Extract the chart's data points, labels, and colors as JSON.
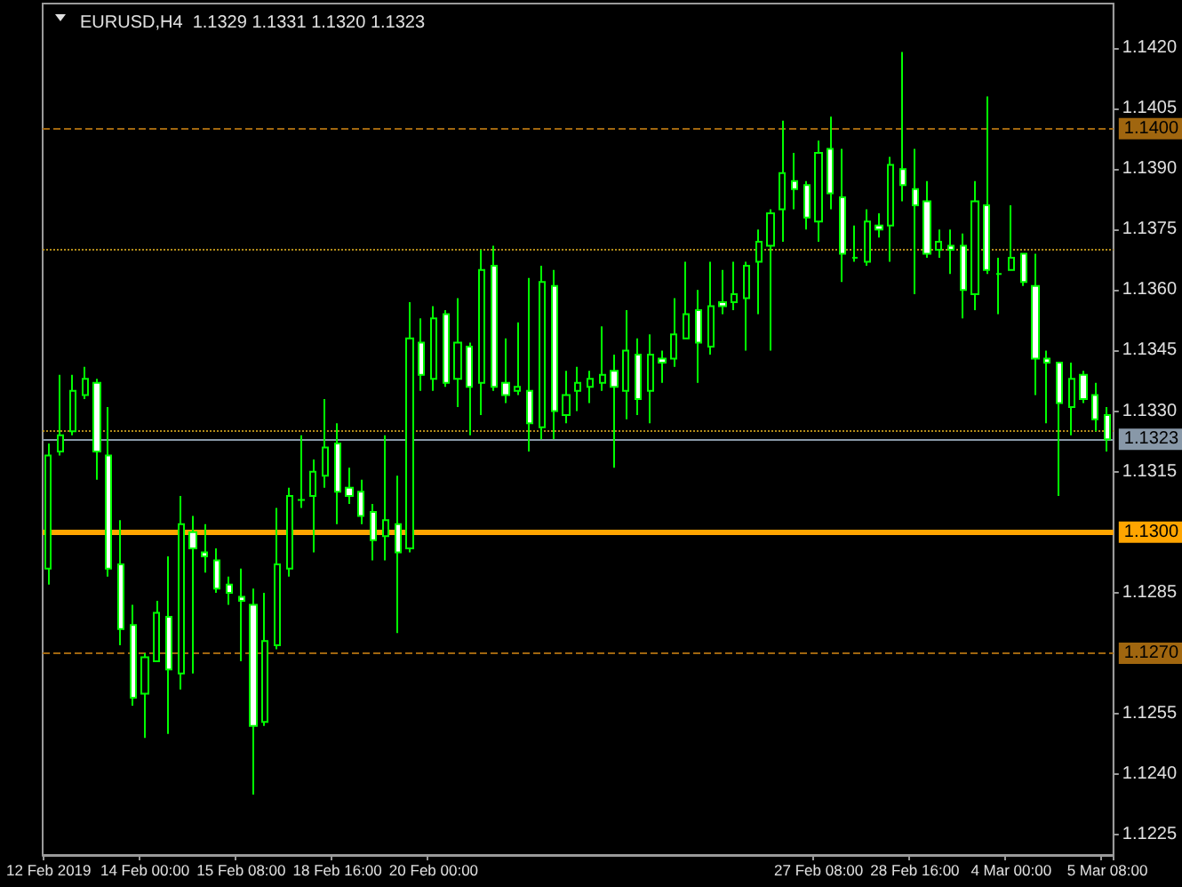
{
  "chart_data": {
    "type": "candlestick",
    "title": "EURUSD,H4  1.1329 1.1331 1.1320 1.1323",
    "categories": [
      "12 Feb 2019",
      null,
      null,
      null,
      null,
      null,
      null,
      null,
      "14 Feb 00:00",
      null,
      null,
      null,
      null,
      null,
      null,
      null,
      "15 Feb 08:00",
      null,
      null,
      null,
      null,
      null,
      null,
      null,
      "18 Feb 16:00",
      null,
      null,
      null,
      null,
      null,
      null,
      null,
      "20 Feb 00:00",
      null,
      null,
      null,
      null,
      null,
      null,
      null,
      null,
      null,
      null,
      null,
      null,
      null,
      null,
      null,
      null,
      null,
      null,
      null,
      null,
      null,
      null,
      null,
      null,
      null,
      null,
      null,
      null,
      null,
      null,
      null,
      "27 Feb 08:00",
      null,
      null,
      null,
      null,
      null,
      null,
      null,
      "28 Feb 16:00",
      null,
      null,
      null,
      null,
      null,
      null,
      null,
      "4 Mar 00:00",
      null,
      null,
      null,
      null,
      null,
      null,
      null,
      "5 Mar 08:00"
    ],
    "color": "#00ff00",
    "colors": [
      "#000000",
      "#000000",
      "#000000",
      "#000000",
      "#ffffff",
      "#ffffff",
      "#ffffff",
      "#ffffff",
      "#000000",
      "#000000",
      "#ffffff",
      "#000000",
      "#ffffff",
      "#ffffff",
      "#ffffff",
      "#ffffff",
      "#ffffff",
      "#ffffff",
      "#000000",
      "#000000",
      "#000000",
      "#00ff00",
      "#000000",
      "#000000",
      "#ffffff",
      "#ffffff",
      "#ffffff",
      "#ffffff",
      "#000000",
      "#ffffff",
      "#000000",
      "#ffffff",
      "#000000",
      "#ffffff",
      "#000000",
      "#ffffff",
      "#000000",
      "#ffffff",
      "#ffffff",
      "#000000",
      "#ffffff",
      "#000000",
      "#ffffff",
      "#000000",
      "#000000",
      "#000000",
      "#000000",
      "#ffffff",
      "#000000",
      "#ffffff",
      "#000000",
      "#ffffff",
      "#000000",
      "#000000",
      "#ffffff",
      "#000000",
      "#ffffff",
      "#000000",
      "#000000",
      "#000000",
      "#000000",
      "#000000",
      "#ffffff",
      "#ffffff",
      "#000000",
      "#ffffff",
      "#ffffff",
      "#00ff00",
      "#000000",
      "#ffffff",
      "#000000",
      "#ffffff",
      "#ffffff",
      "#ffffff",
      "#000000",
      "#ffffff",
      "#ffffff",
      "#000000",
      "#ffffff",
      "#00ff00",
      "#000000",
      "#ffffff",
      "#ffffff",
      "#ffffff",
      "#ffffff",
      "#000000",
      "#ffffff",
      "#ffffff",
      "#ffffff"
    ],
    "ohlc": [
      [
        1.1291,
        1.1322,
        1.1287,
        1.1319
      ],
      [
        1.132,
        1.1339,
        1.1319,
        1.1324
      ],
      [
        1.1325,
        1.1339,
        1.1324,
        1.1335
      ],
      [
        1.1334,
        1.1341,
        1.1333,
        1.1338
      ],
      [
        1.1337,
        1.1338,
        1.1313,
        1.132
      ],
      [
        1.1319,
        1.1331,
        1.1289,
        1.1291
      ],
      [
        1.1292,
        1.1303,
        1.1272,
        1.1276
      ],
      [
        1.1277,
        1.1282,
        1.1257,
        1.1259
      ],
      [
        1.126,
        1.127,
        1.1249,
        1.1269
      ],
      [
        1.1268,
        1.1283,
        1.1268,
        1.128
      ],
      [
        1.1279,
        1.1294,
        1.125,
        1.1266
      ],
      [
        1.1265,
        1.1309,
        1.1261,
        1.1302
      ],
      [
        1.13,
        1.1304,
        1.1265,
        1.1296
      ],
      [
        1.1295,
        1.1302,
        1.129,
        1.1294
      ],
      [
        1.1293,
        1.1296,
        1.1285,
        1.1286
      ],
      [
        1.1287,
        1.1289,
        1.1282,
        1.1285
      ],
      [
        1.1284,
        1.1291,
        1.1268,
        1.1283
      ],
      [
        1.1282,
        1.1286,
        1.1235,
        1.1252
      ],
      [
        1.1253,
        1.1285,
        1.1252,
        1.1273
      ],
      [
        1.1272,
        1.1306,
        1.1271,
        1.1292
      ],
      [
        1.1291,
        1.1311,
        1.1289,
        1.1309
      ],
      [
        1.1308,
        1.1324,
        1.1306,
        1.1308
      ],
      [
        1.1309,
        1.1318,
        1.1295,
        1.1315
      ],
      [
        1.1314,
        1.1333,
        1.1311,
        1.1321
      ],
      [
        1.1322,
        1.1327,
        1.1302,
        1.131
      ],
      [
        1.1311,
        1.1316,
        1.1307,
        1.1309
      ],
      [
        1.131,
        1.1313,
        1.1302,
        1.1304
      ],
      [
        1.1305,
        1.1307,
        1.1293,
        1.1298
      ],
      [
        1.1299,
        1.1324,
        1.1293,
        1.1303
      ],
      [
        1.1302,
        1.1314,
        1.1275,
        1.1295
      ],
      [
        1.1296,
        1.1357,
        1.1295,
        1.1348
      ],
      [
        1.1347,
        1.1353,
        1.1335,
        1.1339
      ],
      [
        1.1338,
        1.1356,
        1.1335,
        1.1353
      ],
      [
        1.1354,
        1.1355,
        1.1336,
        1.1337
      ],
      [
        1.1338,
        1.1358,
        1.1331,
        1.1347
      ],
      [
        1.1346,
        1.1347,
        1.1324,
        1.1336
      ],
      [
        1.1337,
        1.137,
        1.1329,
        1.1365
      ],
      [
        1.1366,
        1.1371,
        1.1335,
        1.1336
      ],
      [
        1.1337,
        1.1348,
        1.1332,
        1.1334
      ],
      [
        1.1335,
        1.1352,
        1.1334,
        1.1336
      ],
      [
        1.1335,
        1.1363,
        1.132,
        1.1327
      ],
      [
        1.1326,
        1.1366,
        1.1323,
        1.1362
      ],
      [
        1.1361,
        1.1365,
        1.1323,
        1.133
      ],
      [
        1.1329,
        1.134,
        1.1327,
        1.1334
      ],
      [
        1.1335,
        1.1341,
        1.133,
        1.1337
      ],
      [
        1.1336,
        1.134,
        1.1332,
        1.1338
      ],
      [
        1.1337,
        1.1351,
        1.1335,
        1.1339
      ],
      [
        1.134,
        1.1344,
        1.1316,
        1.1336
      ],
      [
        1.1335,
        1.1355,
        1.1328,
        1.1345
      ],
      [
        1.1344,
        1.1348,
        1.1329,
        1.1333
      ],
      [
        1.1335,
        1.1349,
        1.1327,
        1.1344
      ],
      [
        1.1343,
        1.1345,
        1.1337,
        1.1342
      ],
      [
        1.1343,
        1.1358,
        1.1341,
        1.1349
      ],
      [
        1.1348,
        1.1367,
        1.1348,
        1.1354
      ],
      [
        1.1355,
        1.136,
        1.1337,
        1.1347
      ],
      [
        1.1346,
        1.1367,
        1.1344,
        1.1356
      ],
      [
        1.1357,
        1.1365,
        1.1354,
        1.1356
      ],
      [
        1.1357,
        1.1367,
        1.1355,
        1.1359
      ],
      [
        1.1358,
        1.1367,
        1.1345,
        1.1366
      ],
      [
        1.1367,
        1.1375,
        1.1354,
        1.1372
      ],
      [
        1.1371,
        1.138,
        1.1345,
        1.1379
      ],
      [
        1.138,
        1.1402,
        1.1372,
        1.1389
      ],
      [
        1.1387,
        1.1394,
        1.138,
        1.1385
      ],
      [
        1.1386,
        1.1387,
        1.1375,
        1.1378
      ],
      [
        1.1377,
        1.1397,
        1.1372,
        1.1394
      ],
      [
        1.1395,
        1.1403,
        1.138,
        1.1384
      ],
      [
        1.1383,
        1.1395,
        1.1362,
        1.1369
      ],
      [
        1.1368,
        1.1376,
        1.1367,
        1.1368
      ],
      [
        1.1367,
        1.138,
        1.1366,
        1.1377
      ],
      [
        1.1376,
        1.1379,
        1.1373,
        1.1375
      ],
      [
        1.1376,
        1.1393,
        1.1367,
        1.1391
      ],
      [
        1.139,
        1.1419,
        1.1382,
        1.1386
      ],
      [
        1.1385,
        1.1395,
        1.1359,
        1.1381
      ],
      [
        1.1382,
        1.1387,
        1.1368,
        1.1369
      ],
      [
        1.137,
        1.1375,
        1.1368,
        1.1372
      ],
      [
        1.1371,
        1.1375,
        1.1364,
        1.137
      ],
      [
        1.1371,
        1.1374,
        1.1353,
        1.136
      ],
      [
        1.1359,
        1.1387,
        1.1355,
        1.1382
      ],
      [
        1.1381,
        1.1408,
        1.1364,
        1.1365
      ],
      [
        1.1364,
        1.1368,
        1.1354,
        1.1364
      ],
      [
        1.1365,
        1.1381,
        1.1365,
        1.1368
      ],
      [
        1.1369,
        1.1369,
        1.1361,
        1.1362
      ],
      [
        1.1361,
        1.1369,
        1.1334,
        1.1343
      ],
      [
        1.1343,
        1.1345,
        1.1327,
        1.1342
      ],
      [
        1.1342,
        1.1342,
        1.1309,
        1.1332
      ],
      [
        1.1331,
        1.1342,
        1.1324,
        1.1338
      ],
      [
        1.1339,
        1.134,
        1.1332,
        1.1333
      ],
      [
        1.1334,
        1.1337,
        1.1325,
        1.1328
      ],
      [
        1.1329,
        1.1331,
        1.132,
        1.1323
      ]
    ],
    "ylim": [
      1.122,
      1.1431
    ],
    "yticks": [
      1.1225,
      {
        "value": 1.124,
        "label": "1.1240"
      },
      1.1255,
      1.1285,
      1.1315,
      {
        "value": 1.133,
        "label": "1.1330"
      },
      1.1345,
      {
        "value": 1.136,
        "label": "1.1360"
      },
      1.1375,
      {
        "value": 1.139,
        "label": "1.1390"
      },
      1.1405,
      {
        "value": 1.142,
        "label": "1.1420"
      }
    ],
    "ref_lines": [
      {
        "axis": "y",
        "value": 1.14,
        "label": "1.1400",
        "color": "#a0660f",
        "line_style": "dashed"
      },
      {
        "axis": "y",
        "value": 1.13,
        "label": "1.1300",
        "color": "#ffa500",
        "line_style": "solid"
      },
      {
        "axis": "y",
        "value": 1.127,
        "label": "1.1270",
        "color": "#a0660f",
        "line_style": "dashed"
      },
      {
        "axis": "y",
        "value": 1.1323,
        "label": "1.1323",
        "color": "#8898a8",
        "line_style": "solid"
      },
      {
        "axis": "y",
        "value": 1.137,
        "color": "#b08a1a",
        "line_style": "dotted"
      },
      {
        "axis": "y",
        "value": 1.1325,
        "color": "#b08a1a",
        "line_style": "dotted"
      }
    ],
    "grid": false
  }
}
